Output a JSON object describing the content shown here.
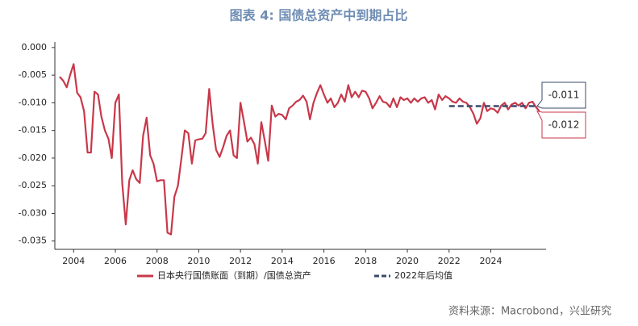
{
  "chart_data": {
    "type": "line",
    "title": "图表 4:  国债总资产中到期占比",
    "source": "资料来源：Macrobond，兴业研究",
    "xlim": [
      2003.1,
      2026.65
    ],
    "xticks": [
      2004,
      2006,
      2008,
      2010,
      2012,
      2014,
      2016,
      2018,
      2020,
      2022,
      2024
    ],
    "ylim": [
      -0.0365,
      0.001
    ],
    "yticks": [
      {
        "value": 0,
        "label": "0.000"
      },
      {
        "value": -0.005,
        "label": "-0.005"
      },
      {
        "value": -0.01,
        "label": "-0.010"
      },
      {
        "value": -0.015,
        "label": "-0.015"
      },
      {
        "value": -0.02,
        "label": "-0.020"
      },
      {
        "value": -0.025,
        "label": "-0.025"
      },
      {
        "value": -0.03,
        "label": "-0.030"
      },
      {
        "value": -0.035,
        "label": "-0.035"
      }
    ],
    "series": [
      {
        "name": "日本央行国债账面（到期）/国债总资产",
        "color": "#c8384a",
        "style": "solid",
        "x": [
          2003.33,
          2003.5,
          2003.67,
          2003.83,
          2004,
          2004.17,
          2004.33,
          2004.5,
          2004.67,
          2004.83,
          2005,
          2005.17,
          2005.33,
          2005.5,
          2005.67,
          2005.83,
          2006,
          2006.17,
          2006.33,
          2006.5,
          2006.67,
          2006.83,
          2007,
          2007.17,
          2007.33,
          2007.5,
          2007.67,
          2007.83,
          2008,
          2008.17,
          2008.33,
          2008.5,
          2008.67,
          2008.83,
          2009,
          2009.17,
          2009.33,
          2009.5,
          2009.67,
          2009.83,
          2010,
          2010.17,
          2010.33,
          2010.5,
          2010.67,
          2010.83,
          2011,
          2011.17,
          2011.33,
          2011.5,
          2011.67,
          2011.83,
          2012,
          2012.17,
          2012.33,
          2012.5,
          2012.67,
          2012.83,
          2013,
          2013.17,
          2013.33,
          2013.5,
          2013.67,
          2013.83,
          2014,
          2014.17,
          2014.33,
          2014.5,
          2014.67,
          2014.83,
          2015,
          2015.17,
          2015.33,
          2015.5,
          2015.67,
          2015.83,
          2016,
          2016.17,
          2016.33,
          2016.5,
          2016.67,
          2016.83,
          2017,
          2017.17,
          2017.33,
          2017.5,
          2017.67,
          2017.83,
          2018,
          2018.17,
          2018.33,
          2018.5,
          2018.67,
          2018.83,
          2019,
          2019.17,
          2019.33,
          2019.5,
          2019.67,
          2019.83,
          2020,
          2020.17,
          2020.33,
          2020.5,
          2020.67,
          2020.83,
          2021,
          2021.17,
          2021.33,
          2021.5,
          2021.67,
          2021.83,
          2022,
          2022.17,
          2022.33,
          2022.5,
          2022.67,
          2022.83,
          2023,
          2023.17,
          2023.33,
          2023.5,
          2023.67,
          2023.83,
          2024,
          2024.17,
          2024.33,
          2024.5,
          2024.67,
          2024.83,
          2025,
          2025.17,
          2025.33,
          2025.5,
          2025.67,
          2025.83,
          2026,
          2026.17,
          2026.33
        ],
        "values": [
          -0.0053,
          -0.006,
          -0.0072,
          -0.005,
          -0.003,
          -0.0082,
          -0.009,
          -0.0115,
          -0.019,
          -0.019,
          -0.008,
          -0.0085,
          -0.0125,
          -0.015,
          -0.0165,
          -0.02,
          -0.01,
          -0.0085,
          -0.0245,
          -0.032,
          -0.024,
          -0.0222,
          -0.0238,
          -0.0245,
          -0.016,
          -0.0127,
          -0.0195,
          -0.021,
          -0.0242,
          -0.024,
          -0.024,
          -0.0335,
          -0.0338,
          -0.027,
          -0.025,
          -0.02,
          -0.015,
          -0.0155,
          -0.021,
          -0.0168,
          -0.0166,
          -0.0165,
          -0.0155,
          -0.0075,
          -0.014,
          -0.0185,
          -0.0198,
          -0.018,
          -0.016,
          -0.015,
          -0.0195,
          -0.02,
          -0.01,
          -0.0135,
          -0.017,
          -0.0163,
          -0.0175,
          -0.021,
          -0.0135,
          -0.017,
          -0.0205,
          -0.0105,
          -0.0125,
          -0.012,
          -0.0122,
          -0.013,
          -0.011,
          -0.0105,
          -0.0098,
          -0.0095,
          -0.0087,
          -0.0098,
          -0.013,
          -0.01,
          -0.0082,
          -0.0068,
          -0.0085,
          -0.01,
          -0.0092,
          -0.0108,
          -0.01,
          -0.0085,
          -0.0098,
          -0.0068,
          -0.009,
          -0.008,
          -0.009,
          -0.0078,
          -0.008,
          -0.0092,
          -0.011,
          -0.01,
          -0.0088,
          -0.0098,
          -0.01,
          -0.0108,
          -0.0092,
          -0.0108,
          -0.009,
          -0.0095,
          -0.0092,
          -0.01,
          -0.0092,
          -0.0098,
          -0.0092,
          -0.009,
          -0.01,
          -0.0095,
          -0.0112,
          -0.0085,
          -0.0095,
          -0.0088,
          -0.0092,
          -0.0098,
          -0.01,
          -0.0092,
          -0.0098,
          -0.01,
          -0.0108,
          -0.012,
          -0.0138,
          -0.0128,
          -0.01,
          -0.0115,
          -0.011,
          -0.0112,
          -0.0118,
          -0.0105,
          -0.01,
          -0.0112,
          -0.0103,
          -0.01,
          -0.0105,
          -0.01,
          -0.011,
          -0.01,
          -0.0098,
          -0.0108,
          -0.0115
        ],
        "value_labels": [
          null,
          null,
          null,
          null,
          null,
          null,
          null,
          null,
          null,
          null,
          null,
          null,
          null,
          null,
          null,
          null,
          null,
          null,
          null,
          null,
          null,
          null,
          null,
          null,
          null,
          null,
          null,
          null,
          null,
          null,
          null,
          null,
          null,
          null,
          null,
          null,
          null,
          null,
          null,
          null,
          null,
          null,
          null,
          null,
          null,
          null,
          null,
          null,
          null,
          null,
          null,
          null,
          null,
          null,
          null,
          null,
          null,
          null,
          null,
          null,
          null,
          null,
          null,
          null,
          null,
          null,
          null,
          null,
          null,
          null,
          null,
          null,
          null,
          null,
          null,
          null,
          null,
          null,
          null,
          null,
          null,
          null,
          null,
          null,
          null,
          null,
          null,
          null,
          null,
          null,
          null,
          null,
          null,
          null,
          null,
          null,
          null,
          null,
          null,
          null,
          null,
          null,
          null,
          null,
          null,
          null,
          null,
          null,
          null,
          null,
          null,
          null,
          null,
          null,
          null,
          null,
          null,
          null,
          null,
          null,
          null,
          null,
          null,
          null,
          null,
          null,
          null,
          null,
          null,
          null,
          null,
          null,
          null,
          null,
          null,
          null,
          null,
          null,
          "-0.012"
        ]
      },
      {
        "name": "2022年后均值",
        "color": "#3a4a6b",
        "style": "dashed",
        "x": [
          2022,
          2026.33
        ],
        "values": [
          -0.0106,
          -0.0106
        ],
        "value_labels": [
          null,
          "-0.011"
        ]
      }
    ]
  }
}
